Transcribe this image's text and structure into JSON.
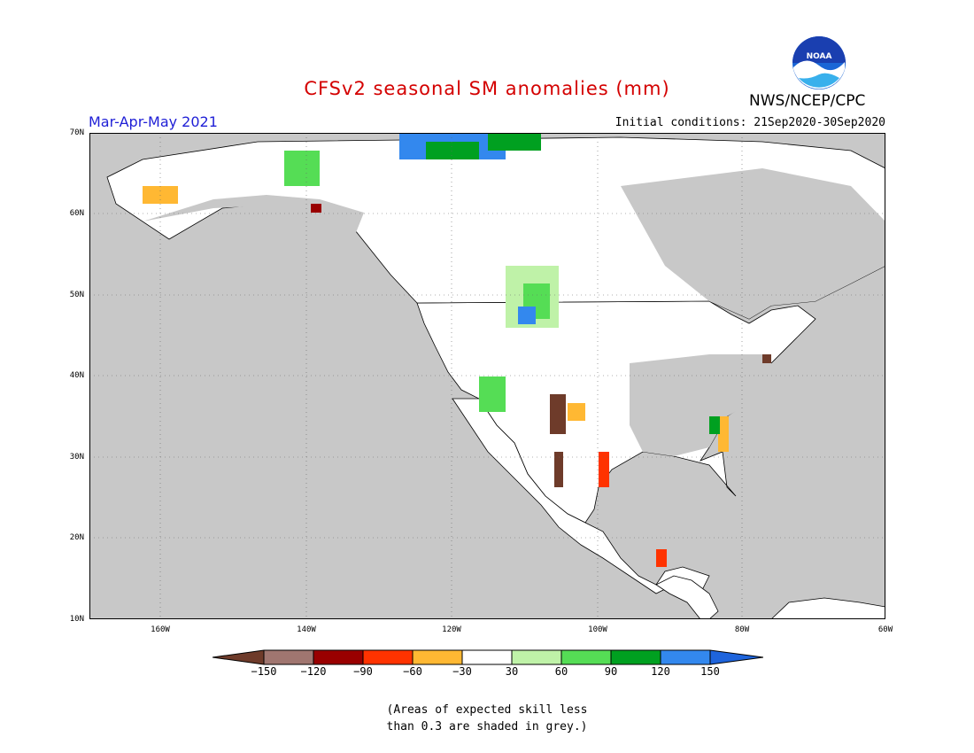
{
  "map": {
    "title": "CFSv2 seasonal SM anomalies (mm)",
    "period": "Mar-Apr-May 2021",
    "initial_conditions": "Initial conditions: 21Sep2020-30Sep2020",
    "agency": "NWS/NCEP/CPC",
    "logo_text": "NOAA",
    "lat_labels": [
      "70N",
      "60N",
      "50N",
      "40N",
      "30N",
      "20N",
      "10N"
    ],
    "lon_labels": [
      "160W",
      "140W",
      "120W",
      "100W",
      "80W",
      "60W"
    ],
    "note_line1": "(Areas of expected skill less",
    "note_line2": "than 0.3 are shaded in grey.)",
    "colors": {
      "title": "#d40000",
      "period": "#1f1fd6",
      "grey_mask": "#c8c8c8",
      "land_white": "#ffffff"
    }
  },
  "legend": {
    "labels": [
      "−150",
      "−120",
      "−90",
      "−60",
      "−30",
      "30",
      "60",
      "90",
      "120",
      "150"
    ],
    "colors": [
      "#6e3b2a",
      "#a07670",
      "#990000",
      "#ff3300",
      "#ffb833",
      "#ffffff",
      "#bff2a8",
      "#55dd55",
      "#00a020",
      "#3388ee",
      "#1e64dc"
    ]
  }
}
